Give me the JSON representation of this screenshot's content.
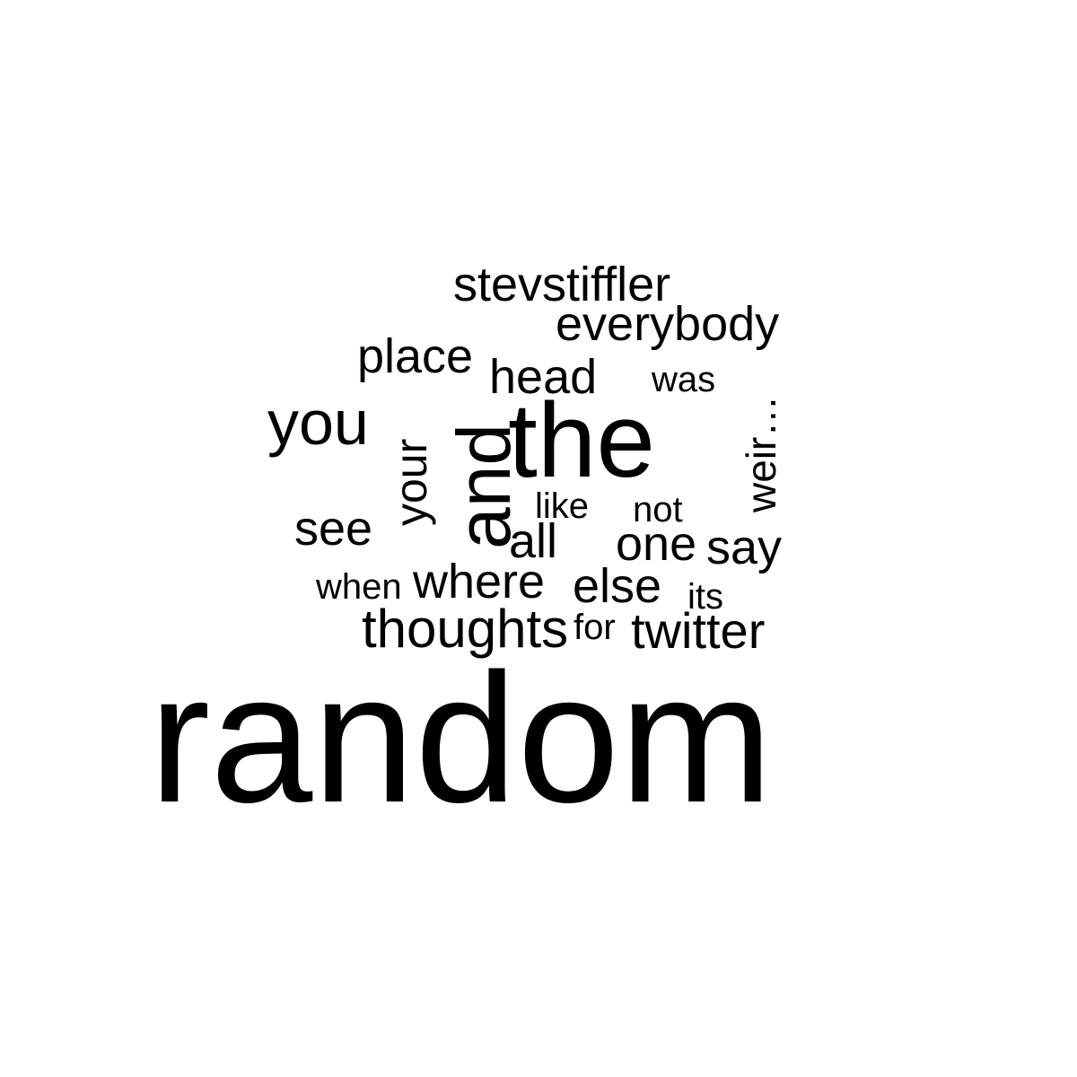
{
  "word_cloud": {
    "words": [
      {
        "id": "random",
        "text": "random"
      },
      {
        "id": "the",
        "text": "the"
      },
      {
        "id": "and",
        "text": "and"
      },
      {
        "id": "you",
        "text": "you"
      },
      {
        "id": "your",
        "text": "your"
      },
      {
        "id": "stevstiffler",
        "text": "stevstiffler"
      },
      {
        "id": "everybody",
        "text": "everybody"
      },
      {
        "id": "place",
        "text": "place"
      },
      {
        "id": "head",
        "text": "head"
      },
      {
        "id": "was",
        "text": "was"
      },
      {
        "id": "weir",
        "text": "weir…"
      },
      {
        "id": "like",
        "text": "like"
      },
      {
        "id": "not",
        "text": "not"
      },
      {
        "id": "see",
        "text": "see"
      },
      {
        "id": "all",
        "text": "all"
      },
      {
        "id": "one",
        "text": "one"
      },
      {
        "id": "say",
        "text": "say"
      },
      {
        "id": "when",
        "text": "when"
      },
      {
        "id": "where",
        "text": "where"
      },
      {
        "id": "else",
        "text": "else"
      },
      {
        "id": "its",
        "text": "its"
      },
      {
        "id": "thoughts",
        "text": "thoughts"
      },
      {
        "id": "for",
        "text": "for"
      },
      {
        "id": "twitter",
        "text": "twitter"
      }
    ]
  }
}
